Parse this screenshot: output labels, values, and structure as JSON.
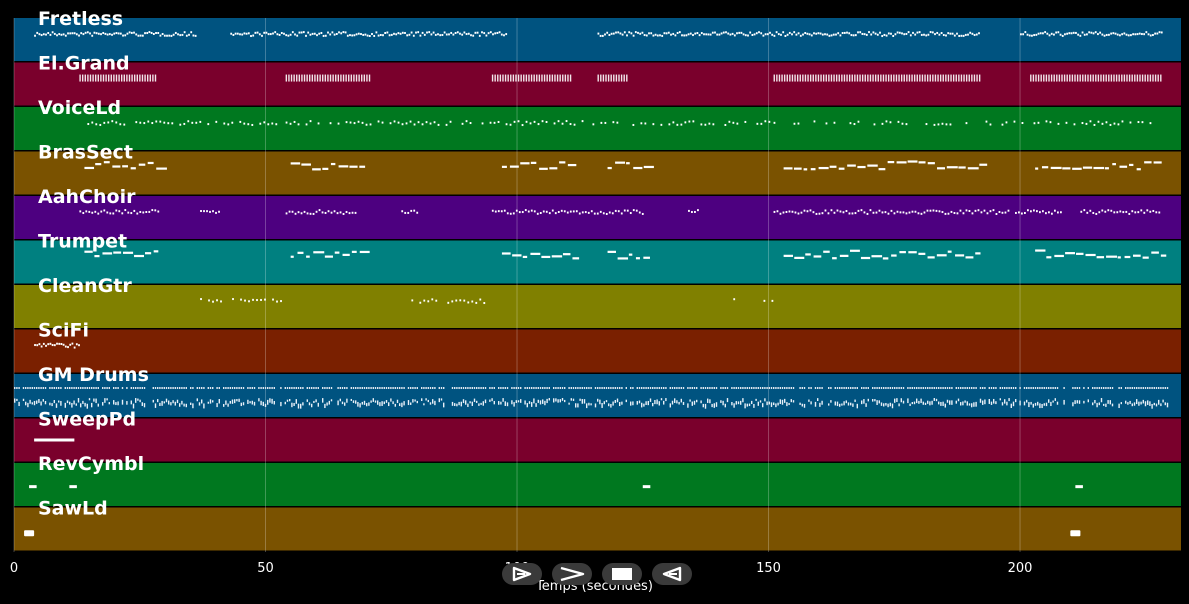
{
  "tracks": [
    {
      "name": "Fretless",
      "color": "#005380",
      "notes": [
        [
          4,
          0.35,
          32,
          "dense"
        ],
        [
          43,
          0.35,
          55,
          "dense"
        ],
        [
          116,
          0.35,
          76,
          "dense"
        ],
        [
          200,
          0.35,
          28,
          "dense"
        ]
      ]
    },
    {
      "name": "El.Grand",
      "color": "#7a002c",
      "notes": [
        [
          13,
          0.35,
          15,
          "chord"
        ],
        [
          54,
          0.35,
          17,
          "chord"
        ],
        [
          95,
          0.35,
          16,
          "chord"
        ],
        [
          116,
          0.35,
          6,
          "chord"
        ],
        [
          151,
          0.35,
          41,
          "chord"
        ],
        [
          202,
          0.35,
          26,
          "chord"
        ]
      ]
    },
    {
      "name": "VoiceLd",
      "color": "#00781f",
      "notes": [
        [
          13,
          0.35,
          40,
          "sparse"
        ],
        [
          54,
          0.35,
          60,
          "sparse"
        ],
        [
          115,
          0.35,
          36,
          "sparse"
        ],
        [
          151,
          0.35,
          77,
          "sparse"
        ]
      ]
    },
    {
      "name": "BrasSect",
      "color": "#7a5200",
      "notes": [
        [
          14,
          0.3,
          15,
          "block"
        ],
        [
          55,
          0.3,
          14,
          "block"
        ],
        [
          97,
          0.3,
          15,
          "block"
        ],
        [
          118,
          0.3,
          8,
          "block"
        ],
        [
          153,
          0.3,
          39,
          "block"
        ],
        [
          203,
          0.3,
          25,
          "block"
        ]
      ]
    },
    {
      "name": "AahChoir",
      "color": "#4d0080",
      "notes": [
        [
          13,
          0.35,
          16,
          "dash"
        ],
        [
          37,
          0.35,
          4,
          "dash"
        ],
        [
          54,
          0.35,
          14,
          "dash"
        ],
        [
          77,
          0.35,
          3,
          "dash"
        ],
        [
          95,
          0.35,
          30,
          "dash"
        ],
        [
          134,
          0.35,
          2,
          "dash"
        ],
        [
          151,
          0.35,
          47,
          "dash"
        ],
        [
          199,
          0.35,
          9,
          "dash"
        ],
        [
          212,
          0.35,
          16,
          "dash"
        ]
      ]
    },
    {
      "name": "Trumpet",
      "color": "#008080",
      "notes": [
        [
          14,
          0.3,
          15,
          "block"
        ],
        [
          55,
          0.3,
          14,
          "block"
        ],
        [
          97,
          0.3,
          15,
          "block"
        ],
        [
          118,
          0.3,
          8,
          "block"
        ],
        [
          153,
          0.3,
          39,
          "block"
        ],
        [
          203,
          0.3,
          25,
          "block"
        ]
      ]
    },
    {
      "name": "CleanGtr",
      "color": "#808000",
      "notes": [
        [
          37,
          0.35,
          16,
          "sparse"
        ],
        [
          79,
          0.35,
          15,
          "sparse"
        ],
        [
          143,
          0.35,
          2,
          "sparse"
        ],
        [
          149,
          0.35,
          2,
          "sparse"
        ]
      ]
    },
    {
      "name": "SciFi",
      "color": "#7a2000",
      "notes": [
        [
          4,
          0.35,
          9,
          "dense"
        ]
      ]
    },
    {
      "name": "GM Drums",
      "color": "#005380",
      "notes": [
        [
          0,
          0.35,
          230,
          "drums"
        ]
      ]
    },
    {
      "name": "SweepPd",
      "color": "#7a002c",
      "notes": [
        [
          4,
          0.5,
          8,
          "long"
        ]
      ]
    },
    {
      "name": "RevCymbl",
      "color": "#00781f",
      "notes": [
        [
          3,
          0.55,
          1.5,
          "long"
        ],
        [
          11,
          0.55,
          1.5,
          "long"
        ],
        [
          125,
          0.55,
          1.5,
          "long"
        ],
        [
          211,
          0.55,
          1.5,
          "long"
        ]
      ]
    },
    {
      "name": "SawLd",
      "color": "#7a5200",
      "notes": [
        [
          2,
          0.6,
          2,
          "thick"
        ],
        [
          210,
          0.6,
          2,
          "thick"
        ]
      ]
    }
  ],
  "x_axis": {
    "title": "Temps (secondes)",
    "ticks": [
      0,
      50,
      100,
      150,
      200
    ],
    "range": [
      0,
      232
    ]
  },
  "controls": [
    {
      "name": "play-button",
      "icon": "play-icon"
    },
    {
      "name": "forward-button",
      "icon": "forward-icon"
    },
    {
      "name": "stop-button",
      "icon": "stop-icon"
    },
    {
      "name": "rewind-button",
      "icon": "rewind-icon"
    }
  ]
}
